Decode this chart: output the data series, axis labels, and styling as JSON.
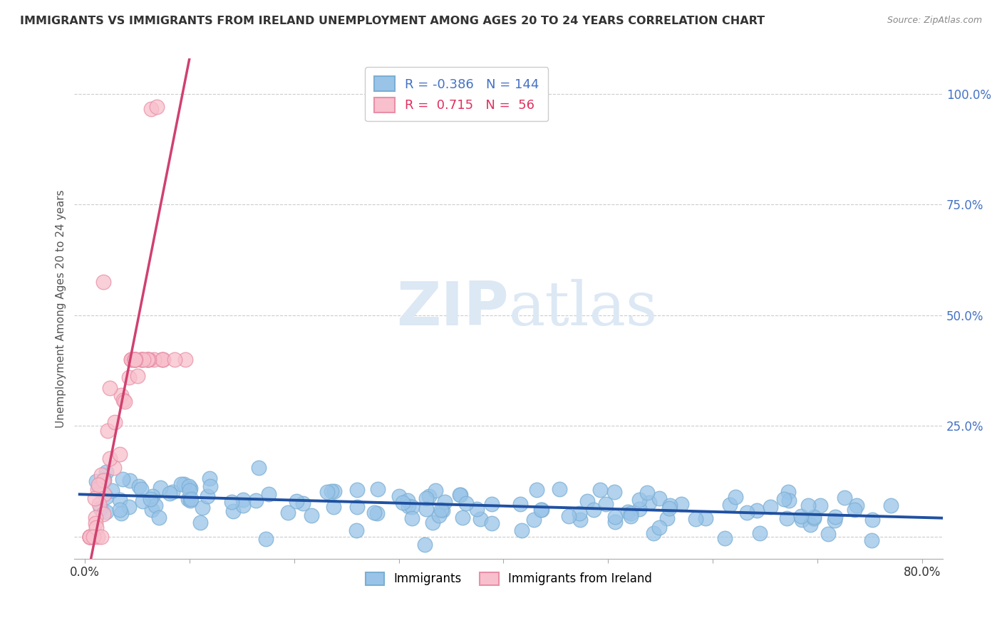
{
  "title": "IMMIGRANTS VS IMMIGRANTS FROM IRELAND UNEMPLOYMENT AMONG AGES 20 TO 24 YEARS CORRELATION CHART",
  "source": "Source: ZipAtlas.com",
  "ylabel": "Unemployment Among Ages 20 to 24 years",
  "xlim": [
    -0.01,
    0.82
  ],
  "ylim": [
    -0.05,
    1.08
  ],
  "xticks": [
    0.0,
    0.1,
    0.2,
    0.3,
    0.4,
    0.5,
    0.6,
    0.7,
    0.8
  ],
  "xticklabels": [
    "0.0%",
    "",
    "",
    "",
    "",
    "",
    "",
    "",
    "80.0%"
  ],
  "yticks": [
    0.0,
    0.25,
    0.5,
    0.75,
    1.0
  ],
  "yticklabels": [
    "",
    "25.0%",
    "50.0%",
    "75.0%",
    "100.0%"
  ],
  "legend_R1": "-0.386",
  "legend_N1": "144",
  "legend_R2": "0.715",
  "legend_N2": "56",
  "blue_color": "#99c4e8",
  "blue_edge_color": "#7bafd4",
  "pink_color": "#f8c0cc",
  "pink_edge_color": "#e890a8",
  "blue_line_color": "#2050a0",
  "pink_line_color": "#d04070",
  "watermark_color": "#dce8f4",
  "grid_color": "#cccccc",
  "background_color": "#ffffff",
  "blue_slope": -0.065,
  "blue_intercept": 0.095,
  "pink_slope": 12.0,
  "pink_intercept": -0.12
}
